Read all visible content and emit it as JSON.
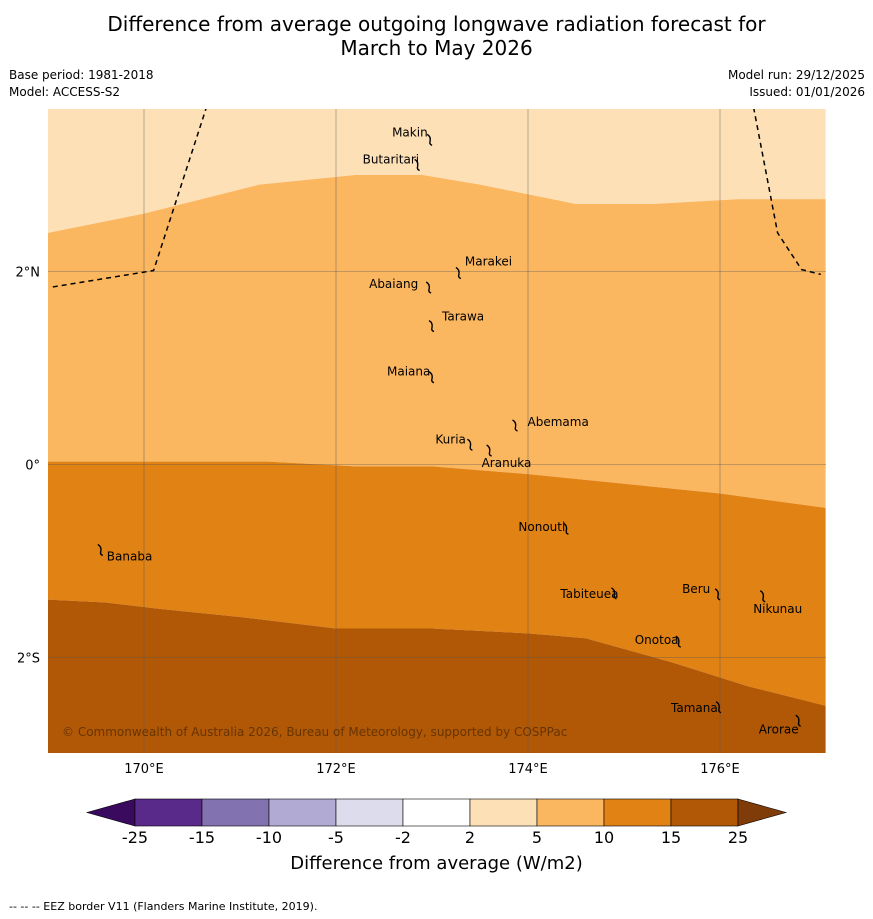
{
  "title": {
    "line1": "Difference from average outgoing longwave radiation forecast for",
    "line2": "March to May 2026"
  },
  "meta": {
    "base_period": "Base period: 1981-2018",
    "model": "Model: ACCESS-S2",
    "model_run": "Model run: 29/12/2025",
    "issued": "Issued: 01/01/2026"
  },
  "map": {
    "lat_labels": [
      "2°N",
      "0°",
      "2°S"
    ],
    "lon_labels": [
      "170°E",
      "172°E",
      "174°E",
      "176°E"
    ],
    "copyright": "© Commonwealth of Australia 2026, Bureau of Meteorology, supported by COSPPac",
    "islands": [
      {
        "name": "Makin",
        "lon": 172.98,
        "lat": 3.38
      },
      {
        "name": "Butaritari",
        "lon": 172.85,
        "lat": 3.12
      },
      {
        "name": "Marakei",
        "lon": 173.28,
        "lat": 2.0
      },
      {
        "name": "Abaiang",
        "lon": 172.97,
        "lat": 1.85
      },
      {
        "name": "Tarawa",
        "lon": 173.0,
        "lat": 1.45
      },
      {
        "name": "Maiana",
        "lon": 173.0,
        "lat": 0.92
      },
      {
        "name": "Abemama",
        "lon": 173.87,
        "lat": 0.42
      },
      {
        "name": "Kuria",
        "lon": 173.4,
        "lat": 0.22
      },
      {
        "name": "Aranuka",
        "lon": 173.6,
        "lat": 0.16
      },
      {
        "name": "Banaba",
        "lon": 169.55,
        "lat": -0.87
      },
      {
        "name": "Nonouti",
        "lon": 174.4,
        "lat": -0.65
      },
      {
        "name": "Tabiteuea",
        "lon": 174.9,
        "lat": -1.32
      },
      {
        "name": "Beru",
        "lon": 175.98,
        "lat": -1.33
      },
      {
        "name": "Nikunau",
        "lon": 176.45,
        "lat": -1.35
      },
      {
        "name": "Onotoa",
        "lon": 175.57,
        "lat": -1.82
      },
      {
        "name": "Tamana",
        "lon": 175.99,
        "lat": -2.5
      },
      {
        "name": "Arorae",
        "lon": 176.82,
        "lat": -2.64
      }
    ]
  },
  "colorbar": {
    "ticks": [
      "-25",
      "-15",
      "-10",
      "-5",
      "-2",
      "2",
      "5",
      "10",
      "15",
      "25"
    ],
    "colors": [
      "#3a0a5e",
      "#5a2a8a",
      "#8272b0",
      "#b1aad3",
      "#dcdcec",
      "#ffffff",
      "#fde0b6",
      "#fbb660",
      "#e08214",
      "#b15806",
      "#7f3b08"
    ],
    "label": "Difference from average (W/m2)"
  },
  "footer": "--  --  -- EEZ border V11 (Flanders Marine Institute, 2019).",
  "chart_data": {
    "type": "heatmap",
    "title": "Difference from average outgoing longwave radiation forecast for March to May 2026",
    "lon_range": [
      169.0,
      177.1
    ],
    "lat_range": [
      -3.0,
      3.7
    ],
    "contour_levels": [
      -25,
      -15,
      -10,
      -5,
      -2,
      2,
      5,
      10,
      15,
      25
    ],
    "bands": [
      {
        "range": [
          2,
          5
        ],
        "color": "#fde0b6",
        "region": "north of upper contour"
      },
      {
        "range": [
          5,
          10
        ],
        "color": "#fbb660",
        "region": "between upper and middle contours"
      },
      {
        "range": [
          10,
          15
        ],
        "color": "#e08214",
        "region": "between middle and lower contours"
      },
      {
        "range": [
          15,
          25
        ],
        "color": "#b15806",
        "region": "south of lower contour"
      }
    ],
    "contours": [
      {
        "level": 5,
        "points": [
          [
            169.0,
            2.4
          ],
          [
            169.5,
            2.5
          ],
          [
            170.0,
            2.6
          ],
          [
            171.2,
            2.9
          ],
          [
            172.2,
            3.0
          ],
          [
            172.9,
            3.0
          ],
          [
            173.5,
            2.9
          ],
          [
            174.5,
            2.7
          ],
          [
            175.3,
            2.7
          ],
          [
            176.2,
            2.75
          ],
          [
            177.1,
            2.75
          ]
        ]
      },
      {
        "level": 10,
        "points": [
          [
            169.0,
            0.03
          ],
          [
            170.5,
            0.03
          ],
          [
            171.3,
            0.03
          ],
          [
            172.2,
            -0.02
          ],
          [
            173.0,
            -0.02
          ],
          [
            174.0,
            -0.1
          ],
          [
            175.0,
            -0.2
          ],
          [
            176.0,
            -0.3
          ],
          [
            177.1,
            -0.45
          ]
        ]
      },
      {
        "level": 15,
        "points": [
          [
            169.0,
            -1.4
          ],
          [
            169.6,
            -1.43
          ],
          [
            170.2,
            -1.5
          ],
          [
            171.0,
            -1.58
          ],
          [
            172.0,
            -1.7
          ],
          [
            173.0,
            -1.7
          ],
          [
            174.0,
            -1.75
          ],
          [
            174.6,
            -1.8
          ],
          [
            175.5,
            -2.05
          ],
          [
            176.3,
            -2.3
          ],
          [
            177.1,
            -2.5
          ]
        ]
      }
    ],
    "grid_lats": [
      2,
      0,
      -2
    ],
    "grid_lons": [
      170,
      172,
      174,
      176
    ],
    "eez_borders": [
      [
        [
          169.05,
          1.84
        ],
        [
          170.1,
          2.01
        ],
        [
          170.65,
          3.7
        ]
      ],
      [
        [
          176.35,
          3.7
        ],
        [
          176.6,
          2.4
        ],
        [
          176.85,
          2.02
        ],
        [
          177.05,
          1.97
        ]
      ]
    ]
  }
}
